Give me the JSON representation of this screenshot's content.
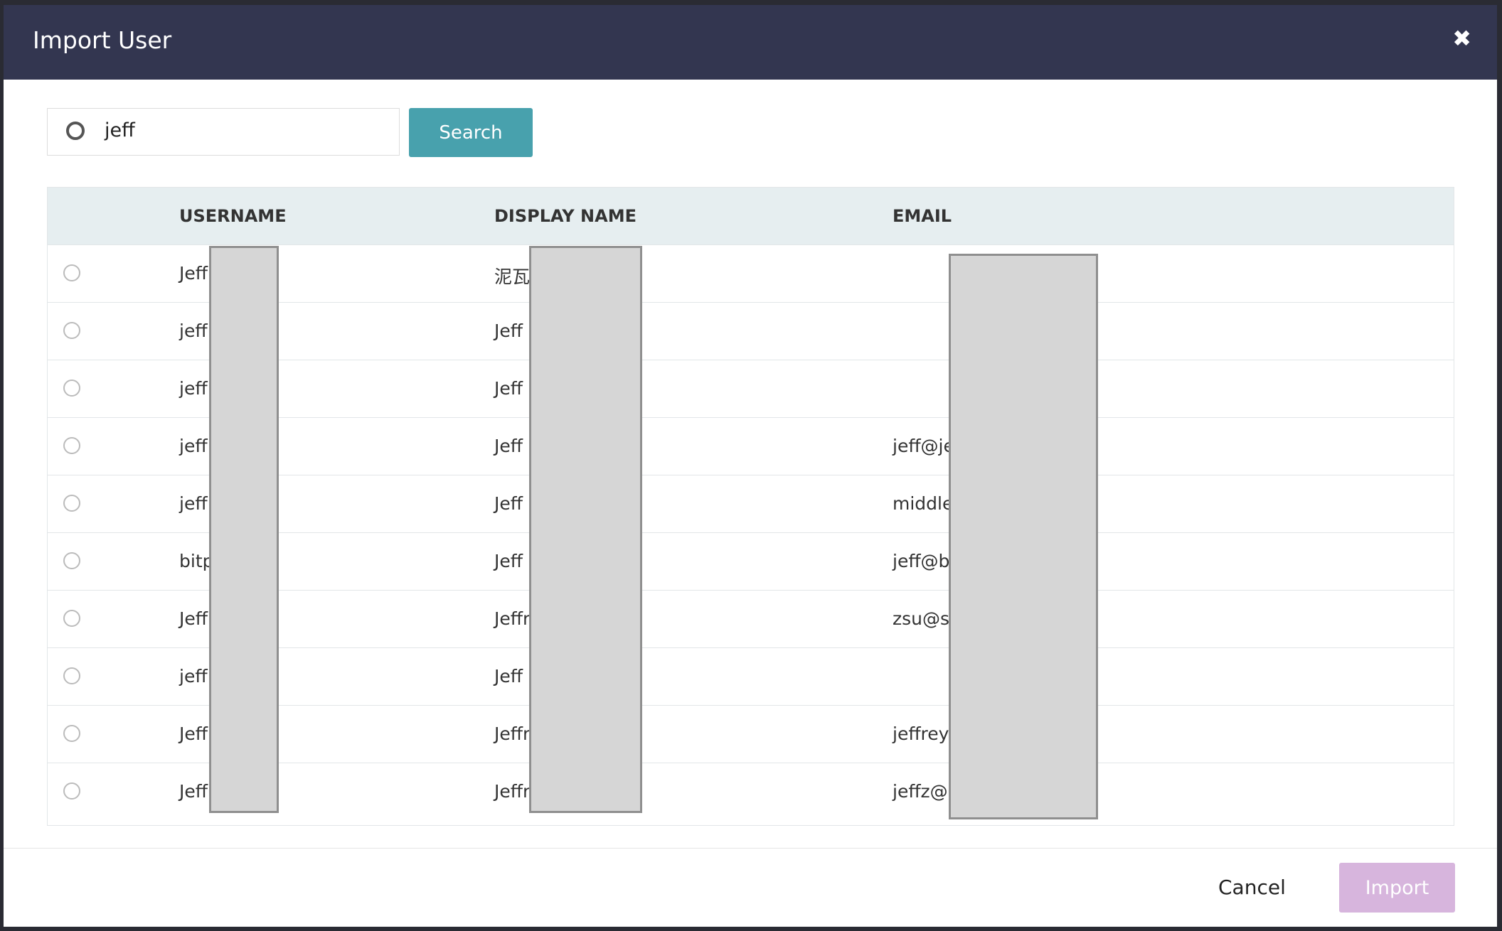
{
  "dialog": {
    "title": "Import User",
    "close": "✖",
    "search": {
      "value": "jeff",
      "button": "Search"
    },
    "table": {
      "headers": [
        "USERNAME",
        "DISPLAY NAME",
        "EMAIL"
      ],
      "rows": [
        [
          "Jeff",
          "泥瓦",
          null
        ],
        [
          "jeff",
          "Jeff",
          null
        ],
        [
          "jeff",
          "Jeff",
          null
        ],
        [
          "jeff",
          "Jeff",
          "jeff@je"
        ],
        [
          "jeff",
          "Jeff",
          "middle"
        ],
        [
          "bitp",
          "Jeff",
          "jeff@b"
        ],
        [
          "Jeff",
          "Jeffr",
          "zsu@s"
        ],
        [
          "jeff",
          "Jeff",
          null
        ],
        [
          "Jeff",
          "Jeffr",
          "jeffrey"
        ],
        [
          "Jeff",
          "Jeffr",
          "jeffz@l"
        ]
      ]
    },
    "footer": {
      "cancel": "Cancel",
      "import": "Import"
    }
  }
}
